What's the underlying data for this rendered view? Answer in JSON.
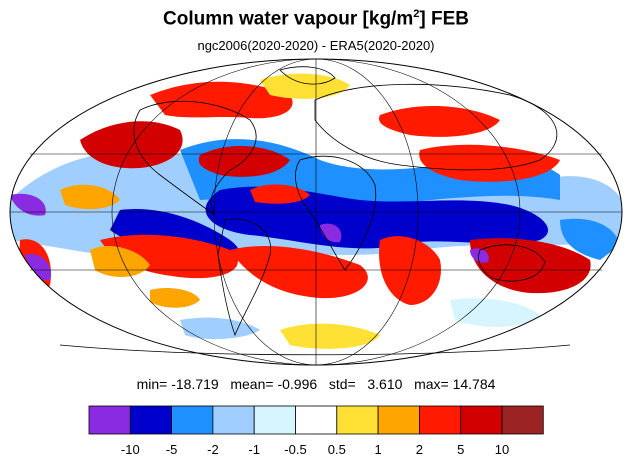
{
  "title": {
    "main": "Column water vapour [kg/m",
    "sup": "2",
    "tail": "] FEB"
  },
  "subtitle": "ngc2006(2020-2020) - ERA5(2020-2020)",
  "stats": {
    "min_label": "min=",
    "min_value": "-18.719",
    "mean_label": "mean=",
    "mean_value": "-0.996",
    "std_label": "std=",
    "std_value": "3.610",
    "max_label": "max=",
    "max_value": "14.784"
  },
  "colorbar": {
    "colors": [
      "#8a2be2",
      "#0000cd",
      "#1e90ff",
      "#a0cfff",
      "#d6f5ff",
      "#ffffff",
      "#ffe135",
      "#ffa500",
      "#ff1a00",
      "#d20000",
      "#9b2323"
    ],
    "tick_labels": [
      "-10",
      "-5",
      "-2",
      "-1",
      "-0.5",
      "0.5",
      "1",
      "2",
      "5",
      "10"
    ]
  },
  "map": {
    "projection": "mollweide",
    "ocean_color": "#ffffff",
    "coastline_color": "#000000",
    "gridline_color": "#000000"
  }
}
